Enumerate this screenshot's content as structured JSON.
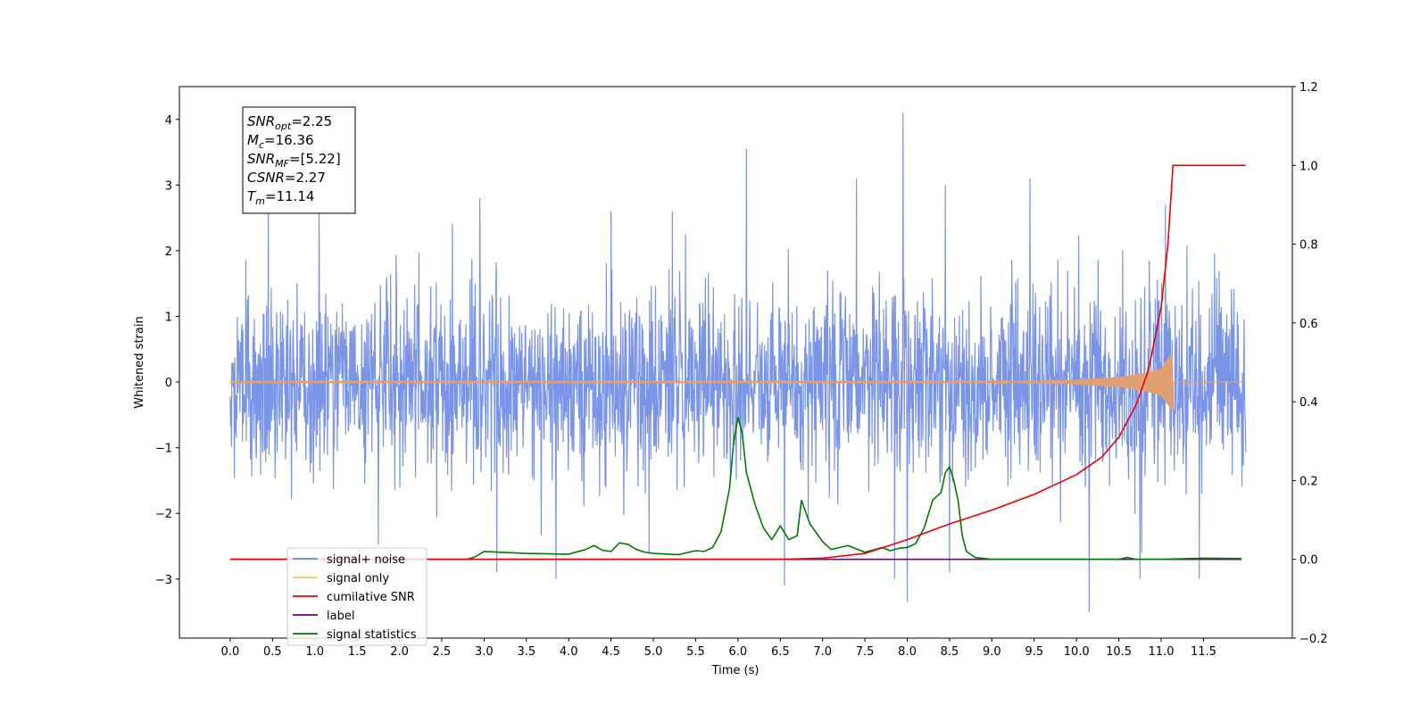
{
  "chart_data": {
    "type": "line",
    "xlabel": "Time (s)",
    "ylabel": "Whitened strain",
    "xlim": [
      -0.6,
      12.55
    ],
    "ylim": [
      -3.9,
      4.5
    ],
    "y2lim": [
      -0.2,
      1.2
    ],
    "x_ticks": [
      "0.0",
      "0.5",
      "1.0",
      "1.5",
      "2.0",
      "2.5",
      "3.0",
      "3.5",
      "4.0",
      "4.5",
      "5.0",
      "5.5",
      "6.0",
      "6.5",
      "7.0",
      "7.5",
      "8.0",
      "8.5",
      "9.0",
      "9.5",
      "10.0",
      "10.5",
      "11.0",
      "11.5"
    ],
    "y_ticks": [
      "−3",
      "−2",
      "−1",
      "0",
      "1",
      "2",
      "3",
      "4"
    ],
    "y2_ticks": [
      "−0.2",
      "0.0",
      "0.2",
      "0.4",
      "0.6",
      "0.8",
      "1.0",
      "1.2"
    ],
    "info_box": [
      {
        "base": "SNR",
        "sub": "opt",
        "value": "=2.25"
      },
      {
        "base": "M",
        "sub": "c",
        "value": "=16.36"
      },
      {
        "base": "SNR",
        "sub": "MF",
        "value": "=[5.22]"
      },
      {
        "base": "CSNR",
        "sub": "",
        "value": "=2.27"
      },
      {
        "base": "T",
        "sub": "m",
        "value": "=11.14"
      }
    ],
    "legend_position": "lower-left",
    "legend": [
      {
        "name": "signal+ noise",
        "color": "#6b88e4"
      },
      {
        "name": "signal only",
        "color": "#ffc46a"
      },
      {
        "name": "cumilative SNR",
        "color": "#ee0000"
      },
      {
        "name": "label",
        "color": "#6a0a6a"
      },
      {
        "name": "signal statistics",
        "color": "#007a00"
      }
    ],
    "series": [
      {
        "name": "signal+ noise",
        "axis": "left",
        "color": "#6b88e4",
        "t_range": [
          0.0,
          12.0
        ],
        "envelope_typical": 1.6,
        "peaks": [
          [
            0.45,
            2.9
          ],
          [
            1.05,
            2.8
          ],
          [
            2.95,
            2.8
          ],
          [
            3.15,
            -2.9
          ],
          [
            3.85,
            -3.0
          ],
          [
            4.5,
            2.6
          ],
          [
            4.95,
            -2.6
          ],
          [
            6.1,
            3.55
          ],
          [
            6.55,
            -3.1
          ],
          [
            7.4,
            3.1
          ],
          [
            7.85,
            -3.0
          ],
          [
            7.95,
            4.1
          ],
          [
            8.0,
            -3.35
          ],
          [
            8.45,
            3.0
          ],
          [
            8.5,
            -2.9
          ],
          [
            9.45,
            3.1
          ],
          [
            10.15,
            -3.5
          ],
          [
            10.75,
            -3.0
          ],
          [
            11.05,
            2.7
          ],
          [
            11.45,
            -3.0
          ]
        ]
      },
      {
        "name": "signal only",
        "axis": "left",
        "color": "#e0a070",
        "t_range": [
          0.0,
          12.0
        ],
        "merger_time": 11.14,
        "envelope": [
          [
            9.0,
            0.0
          ],
          [
            10.0,
            0.03
          ],
          [
            10.5,
            0.07
          ],
          [
            10.8,
            0.13
          ],
          [
            11.0,
            0.2
          ],
          [
            11.14,
            0.45
          ]
        ]
      },
      {
        "name": "cumilative SNR",
        "axis": "right",
        "color": "#ee0000",
        "x": [
          0.0,
          6.5,
          7.0,
          7.5,
          8.0,
          8.5,
          9.0,
          9.5,
          10.0,
          10.3,
          10.5,
          10.7,
          10.85,
          11.0,
          11.08,
          11.14,
          12.0
        ],
        "y": [
          0.0,
          0.0,
          0.003,
          0.015,
          0.05,
          0.09,
          0.125,
          0.165,
          0.215,
          0.26,
          0.31,
          0.39,
          0.48,
          0.64,
          0.8,
          1.0,
          1.0
        ]
      },
      {
        "name": "label",
        "axis": "right",
        "color": "#6a0a6a",
        "x": [
          0.0,
          11.95
        ],
        "y": [
          0.0,
          0.0
        ]
      },
      {
        "name": "signal statistics",
        "axis": "right",
        "color": "#007a00",
        "x": [
          0.0,
          2.8,
          2.9,
          3.0,
          3.5,
          4.0,
          4.2,
          4.3,
          4.4,
          4.5,
          4.6,
          4.7,
          4.8,
          4.9,
          5.0,
          5.3,
          5.5,
          5.6,
          5.7,
          5.8,
          5.9,
          5.95,
          6.0,
          6.05,
          6.1,
          6.2,
          6.3,
          6.4,
          6.5,
          6.6,
          6.7,
          6.75,
          6.85,
          7.0,
          7.1,
          7.2,
          7.3,
          7.5,
          7.7,
          7.8,
          7.9,
          8.0,
          8.1,
          8.2,
          8.3,
          8.35,
          8.4,
          8.45,
          8.5,
          8.55,
          8.6,
          8.65,
          8.7,
          8.8,
          9.0,
          10.5,
          10.6,
          10.7,
          11.0,
          11.5,
          11.95
        ],
        "y": [
          0.0,
          0.0,
          0.007,
          0.02,
          0.015,
          0.013,
          0.025,
          0.035,
          0.023,
          0.02,
          0.042,
          0.038,
          0.025,
          0.018,
          0.015,
          0.012,
          0.022,
          0.02,
          0.03,
          0.07,
          0.18,
          0.3,
          0.36,
          0.32,
          0.22,
          0.14,
          0.08,
          0.05,
          0.085,
          0.05,
          0.06,
          0.15,
          0.09,
          0.045,
          0.025,
          0.03,
          0.035,
          0.018,
          0.03,
          0.022,
          0.028,
          0.03,
          0.04,
          0.08,
          0.15,
          0.16,
          0.17,
          0.22,
          0.235,
          0.2,
          0.15,
          0.06,
          0.02,
          0.005,
          0.0,
          0.0,
          0.005,
          0.0,
          0.0,
          0.003,
          0.002
        ]
      }
    ]
  }
}
